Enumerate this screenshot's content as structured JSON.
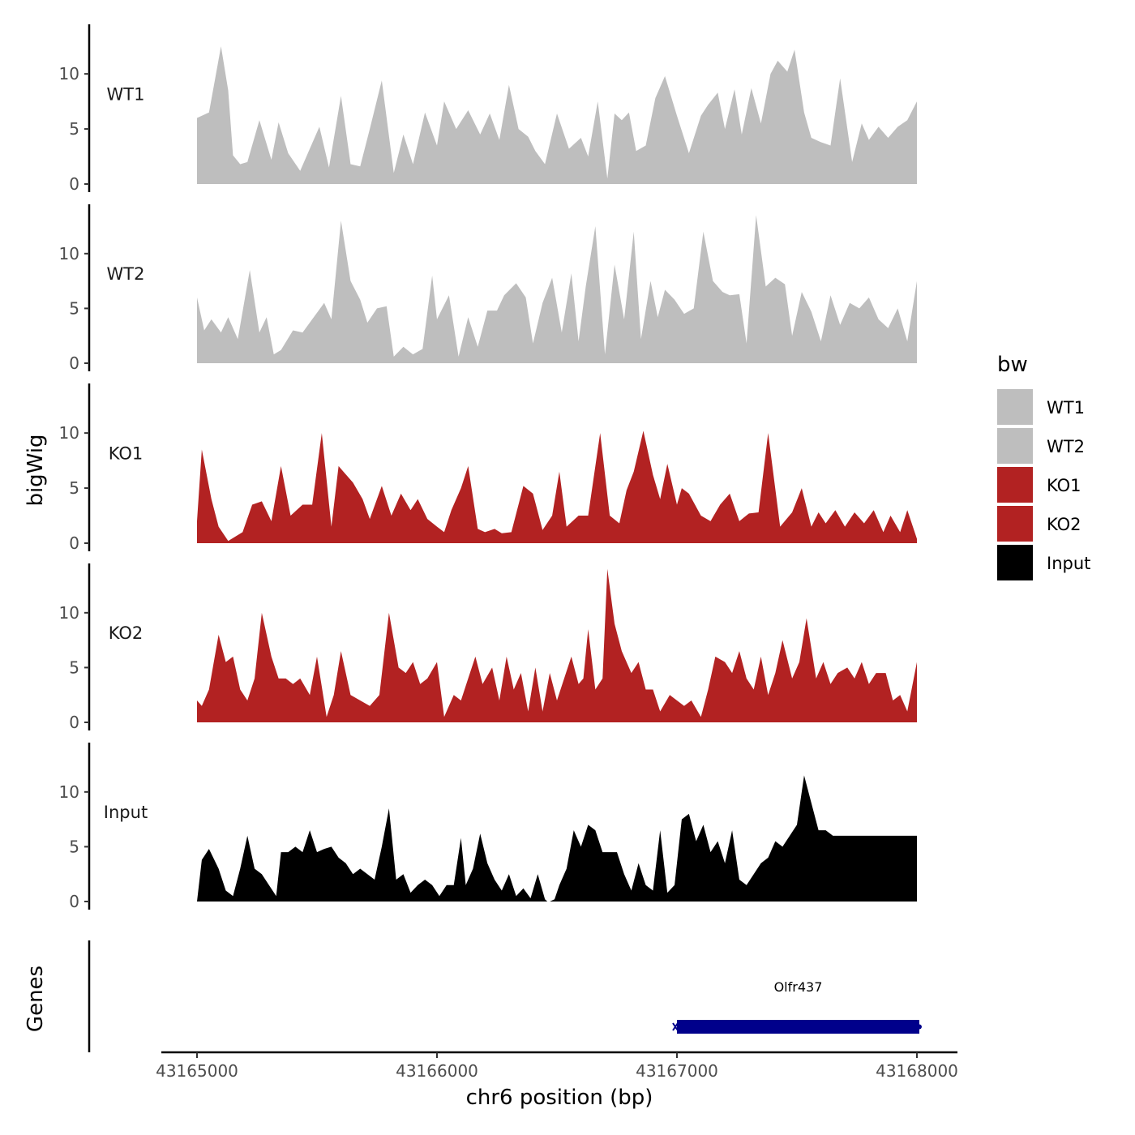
{
  "chart_data": {
    "type": "area",
    "title": "",
    "ylabel": "bigWig",
    "xlabel": "chr6 position (bp)",
    "genes_panel_label": "Genes",
    "xlim": [
      43164880,
      43168170
    ],
    "ylim": [
      0,
      14.5
    ],
    "x_ticks": [
      43165000,
      43166000,
      43167000,
      43168000
    ],
    "x_tick_labels": [
      "43165000",
      "43166000",
      "43167000",
      "43168000"
    ],
    "y_ticks": [
      0,
      5,
      10
    ],
    "y_tick_labels": [
      "0",
      "5",
      "10"
    ],
    "legend": {
      "title": "bw",
      "placement": "right",
      "entries": [
        {
          "label": "WT1",
          "color": "#bebebe"
        },
        {
          "label": "WT2",
          "color": "#bebebe"
        },
        {
          "label": "KO1",
          "color": "#b22222"
        },
        {
          "label": "KO2",
          "color": "#b22222"
        },
        {
          "label": "Input",
          "color": "#000000"
        }
      ]
    },
    "series": [
      {
        "name": "WT1",
        "color": "#bebebe",
        "x": [
          43165000,
          43165050,
          43165100,
          43165130,
          43165150,
          43165180,
          43165210,
          43165260,
          43165310,
          43165340,
          43165380,
          43165430,
          43165470,
          43165510,
          43165550,
          43165600,
          43165640,
          43165680,
          43165720,
          43165770,
          43165820,
          43165860,
          43165900,
          43165950,
          43166000,
          43166030,
          43166080,
          43166130,
          43166180,
          43166220,
          43166260,
          43166300,
          43166340,
          43166380,
          43166410,
          43166450,
          43166500,
          43166550,
          43166600,
          43166630,
          43166670,
          43166710,
          43166740,
          43166770,
          43166800,
          43166830,
          43166870,
          43166910,
          43166950,
          43167000,
          43167050,
          43167100,
          43167130,
          43167170,
          43167200,
          43167240,
          43167270,
          43167310,
          43167350,
          43167390,
          43167420,
          43167460,
          43167490,
          43167530,
          43167560,
          43167600,
          43167640,
          43167680,
          43167730,
          43167770,
          43167800,
          43167840,
          43167880,
          43167920,
          43167960,
          43168000
        ],
        "y": [
          6,
          6.5,
          12.5,
          8.5,
          2.6,
          1.8,
          2.0,
          5.8,
          2.2,
          5.6,
          2.8,
          1.2,
          3.2,
          5.2,
          1.5,
          8.0,
          1.8,
          1.6,
          5.0,
          9.4,
          1.0,
          4.5,
          1.8,
          6.5,
          3.5,
          7.5,
          5.0,
          6.7,
          4.5,
          6.4,
          4.0,
          9.0,
          5.0,
          4.3,
          3.0,
          1.8,
          6.4,
          3.2,
          4.2,
          2.5,
          7.5,
          0.5,
          6.4,
          5.8,
          6.5,
          3.0,
          3.5,
          7.8,
          9.8,
          6.2,
          2.8,
          6.2,
          7.2,
          8.3,
          5.0,
          8.6,
          4.5,
          8.7,
          5.5,
          10.0,
          11.2,
          10.2,
          12.2,
          6.5,
          4.2,
          3.8,
          3.5,
          9.6,
          2.0,
          5.5,
          4.0,
          5.2,
          4.2,
          5.2,
          5.8,
          7.5
        ]
      },
      {
        "name": "WT2",
        "color": "#bebebe",
        "x": [
          43165000,
          43165030,
          43165060,
          43165100,
          43165130,
          43165170,
          43165220,
          43165260,
          43165290,
          43165320,
          43165350,
          43165400,
          43165440,
          43165480,
          43165530,
          43165560,
          43165600,
          43165640,
          43165680,
          43165710,
          43165750,
          43165790,
          43165820,
          43165860,
          43165900,
          43165940,
          43165980,
          43166000,
          43166050,
          43166090,
          43166130,
          43166170,
          43166210,
          43166250,
          43166280,
          43166330,
          43166370,
          43166400,
          43166440,
          43166480,
          43166520,
          43166560,
          43166590,
          43166620,
          43166660,
          43166700,
          43166740,
          43166780,
          43166820,
          43166850,
          43166890,
          43166920,
          43166950,
          43166990,
          43167030,
          43167070,
          43167110,
          43167150,
          43167190,
          43167220,
          43167260,
          43167290,
          43167330,
          43167370,
          43167410,
          43167450,
          43167480,
          43167520,
          43167560,
          43167600,
          43167640,
          43167680,
          43167720,
          43167760,
          43167800,
          43167840,
          43167880,
          43167920,
          43167960,
          43168000
        ],
        "y": [
          6,
          3,
          4,
          2.8,
          4.2,
          2.2,
          8.5,
          2.8,
          4.2,
          0.8,
          1.2,
          3.0,
          2.8,
          4.0,
          5.5,
          4.0,
          13.0,
          7.5,
          5.8,
          3.7,
          5.0,
          5.2,
          0.6,
          1.5,
          0.8,
          1.3,
          8.0,
          4.0,
          6.2,
          0.6,
          4.2,
          1.5,
          4.8,
          4.8,
          6.2,
          7.3,
          6.0,
          1.8,
          5.5,
          7.8,
          2.8,
          8.2,
          2.0,
          7.0,
          12.5,
          0.8,
          9.0,
          4.0,
          12.0,
          2.2,
          7.5,
          4.2,
          6.7,
          5.8,
          4.5,
          5.0,
          12.0,
          7.5,
          6.5,
          6.2,
          6.3,
          1.8,
          13.5,
          7.0,
          7.8,
          7.2,
          2.5,
          6.5,
          4.7,
          2.0,
          6.2,
          3.5,
          5.5,
          5.0,
          6.0,
          4.0,
          3.2,
          5.0,
          2.0,
          7.5
        ]
      },
      {
        "name": "KO1",
        "color": "#b22222",
        "x": [
          43165000,
          43165020,
          43165060,
          43165090,
          43165130,
          43165190,
          43165230,
          43165270,
          43165310,
          43165350,
          43165390,
          43165440,
          43165480,
          43165520,
          43165560,
          43165590,
          43165610,
          43165650,
          43165690,
          43165720,
          43165770,
          43165810,
          43165850,
          43165890,
          43165920,
          43165960,
          43166000,
          43166030,
          43166060,
          43166100,
          43166130,
          43166170,
          43166200,
          43166240,
          43166270,
          43166310,
          43166360,
          43166400,
          43166440,
          43166480,
          43166510,
          43166540,
          43166590,
          43166630,
          43166680,
          43166720,
          43166760,
          43166790,
          43166820,
          43166860,
          43166900,
          43166930,
          43166960,
          43167000,
          43167020,
          43167050,
          43167100,
          43167140,
          43167180,
          43167220,
          43167260,
          43167300,
          43167340,
          43167380,
          43167430,
          43167480,
          43167520,
          43167560,
          43167590,
          43167620,
          43167660,
          43167700,
          43167740,
          43167780,
          43167820,
          43167860,
          43167890,
          43167930,
          43167960,
          43168000
        ],
        "y": [
          2,
          8.5,
          4.0,
          1.5,
          0.2,
          1.0,
          3.5,
          3.8,
          2.0,
          7.0,
          2.5,
          3.5,
          3.5,
          10.0,
          1.5,
          7.0,
          6.5,
          5.5,
          4.0,
          2.2,
          5.2,
          2.5,
          4.5,
          3.0,
          4.0,
          2.2,
          1.5,
          1.0,
          3.0,
          5.0,
          7.0,
          1.3,
          1.0,
          1.3,
          0.9,
          1.0,
          5.2,
          4.5,
          1.2,
          2.5,
          6.5,
          1.5,
          2.5,
          2.5,
          10.0,
          2.5,
          1.8,
          4.8,
          6.5,
          10.2,
          6.2,
          4.0,
          7.2,
          3.5,
          5.0,
          4.5,
          2.5,
          2.0,
          3.5,
          4.5,
          2.0,
          2.7,
          2.8,
          10.0,
          1.5,
          2.8,
          5.0,
          1.5,
          2.8,
          1.8,
          3.0,
          1.5,
          2.8,
          1.8,
          3.0,
          1.0,
          2.5,
          1.0,
          3.0,
          0.4
        ]
      },
      {
        "name": "KO2",
        "color": "#b22222",
        "x": [
          43165000,
          43165020,
          43165050,
          43165090,
          43165120,
          43165150,
          43165180,
          43165210,
          43165240,
          43165270,
          43165310,
          43165340,
          43165370,
          43165400,
          43165430,
          43165470,
          43165500,
          43165540,
          43165570,
          43165600,
          43165640,
          43165680,
          43165720,
          43165760,
          43165800,
          43165840,
          43165870,
          43165900,
          43165930,
          43165960,
          43166000,
          43166030,
          43166070,
          43166100,
          43166130,
          43166160,
          43166190,
          43166230,
          43166260,
          43166290,
          43166320,
          43166350,
          43166380,
          43166410,
          43166440,
          43166470,
          43166500,
          43166530,
          43166560,
          43166590,
          43166610,
          43166630,
          43166660,
          43166690,
          43166710,
          43166740,
          43166770,
          43166810,
          43166840,
          43166870,
          43166900,
          43166930,
          43166970,
          43167000,
          43167030,
          43167060,
          43167100,
          43167130,
          43167160,
          43167200,
          43167230,
          43167260,
          43167290,
          43167320,
          43167350,
          43167380,
          43167410,
          43167440,
          43167480,
          43167510,
          43167540,
          43167580,
          43167610,
          43167640,
          43167670,
          43167710,
          43167740,
          43167770,
          43167800,
          43167830,
          43167870,
          43167900,
          43167930,
          43167960,
          43168000
        ],
        "y": [
          2,
          1.5,
          3.0,
          8.0,
          5.5,
          6.0,
          3.0,
          2.0,
          4.0,
          10.0,
          6.0,
          4.0,
          4.0,
          3.5,
          4.0,
          2.5,
          6.0,
          0.5,
          2.5,
          6.5,
          2.5,
          2.0,
          1.5,
          2.5,
          10.0,
          5.0,
          4.5,
          5.5,
          3.5,
          4.0,
          5.5,
          0.5,
          2.5,
          2.0,
          4.0,
          6.0,
          3.5,
          5.0,
          2.0,
          6.0,
          3.0,
          4.5,
          1.0,
          5.0,
          1.0,
          4.5,
          2.0,
          4.0,
          6.0,
          3.5,
          4.0,
          8.5,
          3.0,
          4.0,
          14.0,
          9.0,
          6.5,
          4.5,
          5.5,
          3.0,
          3.0,
          1.0,
          2.5,
          2.0,
          1.5,
          2.0,
          0.5,
          3.0,
          6.0,
          5.5,
          4.5,
          6.5,
          4.0,
          3.0,
          6.0,
          2.5,
          4.5,
          7.5,
          4.0,
          5.5,
          9.5,
          4.0,
          5.5,
          3.5,
          4.5,
          5.0,
          4.0,
          5.5,
          3.5,
          4.5,
          4.5,
          2.0,
          2.5,
          1.0,
          5.5
        ]
      },
      {
        "name": "Input",
        "color": "#000000",
        "x": [
          43165000,
          43165020,
          43165050,
          43165090,
          43165120,
          43165150,
          43165180,
          43165210,
          43165240,
          43165270,
          43165300,
          43165330,
          43165350,
          43165380,
          43165410,
          43165440,
          43165470,
          43165500,
          43165530,
          43165560,
          43165590,
          43165620,
          43165650,
          43165680,
          43165710,
          43165740,
          43165770,
          43165800,
          43165830,
          43165860,
          43165890,
          43165920,
          43165950,
          43165980,
          43166010,
          43166040,
          43166070,
          43166100,
          43166120,
          43166150,
          43166180,
          43166210,
          43166240,
          43166270,
          43166300,
          43166330,
          43166360,
          43166390,
          43166420,
          43166450,
          43166460,
          43166470,
          43166490,
          43166510,
          43166540,
          43166570,
          43166600,
          43166630,
          43166660,
          43166690,
          43166720,
          43166750,
          43166780,
          43166810,
          43166840,
          43166870,
          43166900,
          43166930,
          43166960,
          43166990,
          43167020,
          43167050,
          43167080,
          43167110,
          43167140,
          43167170,
          43167200,
          43167230,
          43167260,
          43167290,
          43167320,
          43167350,
          43167380,
          43167410,
          43167440,
          43167470,
          43167500,
          43167530,
          43167560,
          43167590,
          43167620,
          43167650,
          43167680,
          43167710,
          43167740,
          43167770,
          43167800,
          43167830,
          43167860,
          43167890,
          43167920,
          43167950,
          43167980,
          43168000
        ],
        "y": [
          0,
          3.8,
          4.8,
          3.0,
          1.0,
          0.5,
          3.0,
          6.0,
          3.0,
          2.5,
          1.5,
          0.5,
          4.5,
          4.5,
          5.0,
          4.5,
          6.5,
          4.5,
          4.8,
          5.0,
          4.0,
          3.5,
          2.5,
          3.0,
          2.5,
          2.0,
          5.0,
          8.5,
          2.0,
          2.5,
          0.8,
          1.5,
          2.0,
          1.5,
          0.5,
          1.5,
          1.5,
          5.8,
          1.5,
          3.0,
          6.2,
          3.5,
          2.0,
          1.0,
          2.5,
          0.5,
          1.2,
          0.3,
          2.5,
          0.2,
          0,
          0,
          0.2,
          1.5,
          3.0,
          6.5,
          5.0,
          7.0,
          6.5,
          4.5,
          4.5,
          4.5,
          2.5,
          1.0,
          3.5,
          1.5,
          1.0,
          6.5,
          0.8,
          1.5,
          7.5,
          8.0,
          5.5,
          7.0,
          4.5,
          5.5,
          3.5,
          6.5,
          2.0,
          1.5,
          2.5,
          3.5,
          4.0,
          5.5,
          5.0,
          6.0,
          7.0,
          11.5,
          9.0,
          6.5,
          6.5,
          6.0,
          6.0,
          6.0,
          6.0,
          6.0,
          6.0,
          6.0,
          6.0,
          6.0,
          6.0,
          6.0,
          6.0,
          6.0
        ]
      }
    ],
    "genes": [
      {
        "name": "Olfr437",
        "start": 43167000,
        "end": 43168010,
        "strand": "+",
        "color": "#00008b"
      }
    ]
  }
}
